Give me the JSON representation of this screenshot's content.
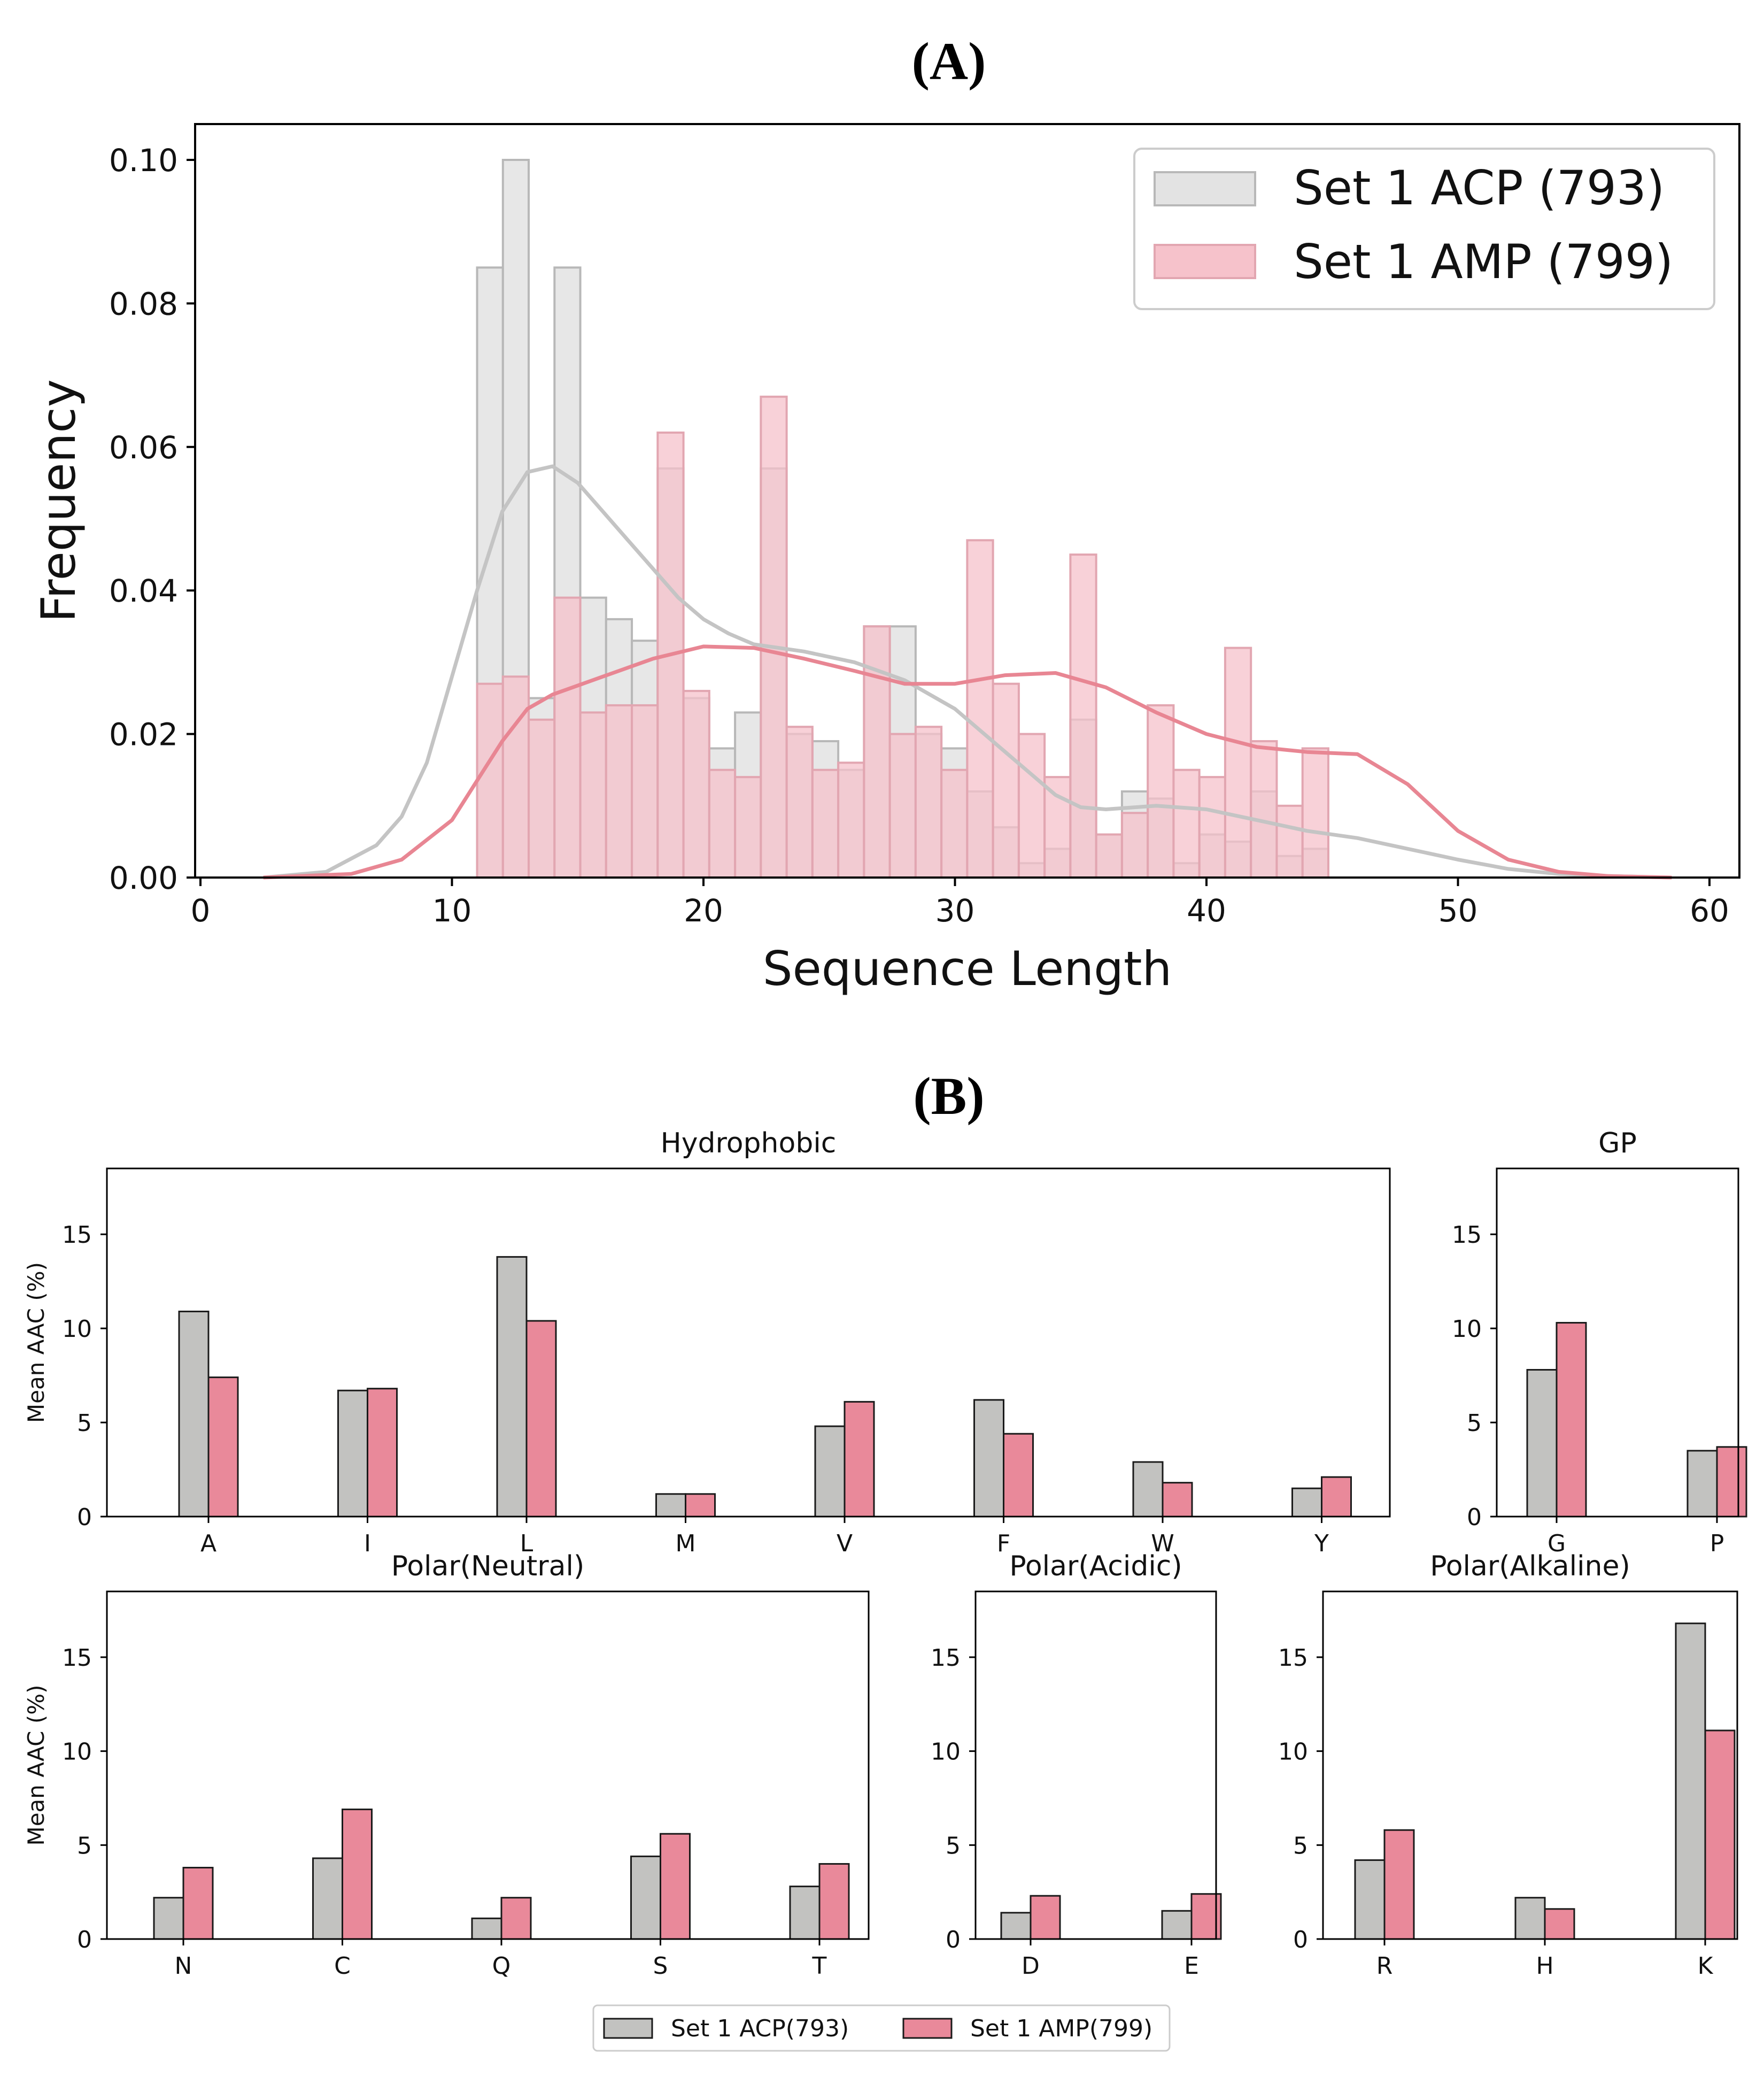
{
  "panel_a": {
    "label": "(A)"
  },
  "panel_b": {
    "label": "(B)"
  },
  "colors": {
    "acp_fill": "#e3e3e3",
    "acp_edge": "#b8b8b8",
    "acp_curve": "#c4c4c4",
    "amp_fill": "#f6c2cb",
    "amp_edge": "#e2a6b1",
    "amp_curve": "#e88693",
    "bar_acp": "#c2c2c0",
    "bar_amp": "#e9899a"
  },
  "chart_data": [
    {
      "id": "histogram",
      "type": "bar",
      "title": "",
      "xlabel": "Sequence Length",
      "ylabel": "Frequency",
      "xlim": [
        0,
        60
      ],
      "ylim": [
        0,
        0.1
      ],
      "xticks": [
        "0",
        "10",
        "20",
        "30",
        "40",
        "50",
        "60"
      ],
      "yticks": [
        "0.00",
        "0.02",
        "0.04",
        "0.06",
        "0.08",
        "0.10"
      ],
      "bin_start": 11,
      "bin_width": 1.0256,
      "legend_position": "top-right",
      "series": [
        {
          "name": "Set 1 ACP (793)",
          "values": [
            0.085,
            0.1,
            0.025,
            0.085,
            0.039,
            0.036,
            0.033,
            0.057,
            0.025,
            0.018,
            0.023,
            0.057,
            0.02,
            0.019,
            0.015,
            0.035,
            0.035,
            0.02,
            0.018,
            0.012,
            0.007,
            0.002,
            0.004,
            0.022,
            0.006,
            0.012,
            0.011,
            0.002,
            0.006,
            0.005,
            0.012,
            0.003,
            0.004
          ],
          "kde": [
            [
              2.5,
              0.0
            ],
            [
              5,
              0.0008
            ],
            [
              7,
              0.0045
            ],
            [
              8,
              0.0085
            ],
            [
              9,
              0.016
            ],
            [
              10,
              0.028
            ],
            [
              11,
              0.04
            ],
            [
              12,
              0.051
            ],
            [
              13,
              0.0565
            ],
            [
              14,
              0.0573
            ],
            [
              15,
              0.055
            ],
            [
              16,
              0.051
            ],
            [
              17,
              0.047
            ],
            [
              18,
              0.043
            ],
            [
              19,
              0.039
            ],
            [
              20,
              0.036
            ],
            [
              21,
              0.034
            ],
            [
              22,
              0.0325
            ],
            [
              24,
              0.0315
            ],
            [
              26,
              0.03
            ],
            [
              28,
              0.0275
            ],
            [
              30,
              0.0235
            ],
            [
              32,
              0.0175
            ],
            [
              34,
              0.0115
            ],
            [
              35,
              0.0098
            ],
            [
              36,
              0.0095
            ],
            [
              38,
              0.01
            ],
            [
              40,
              0.0095
            ],
            [
              42,
              0.008
            ],
            [
              44,
              0.0065
            ],
            [
              46,
              0.0055
            ],
            [
              48,
              0.004
            ],
            [
              50,
              0.0025
            ],
            [
              52,
              0.0012
            ],
            [
              54,
              0.0005
            ],
            [
              56,
              0.0002
            ],
            [
              58.5,
              0.0
            ]
          ]
        },
        {
          "name": "Set 1 AMP (799)",
          "values": [
            0.027,
            0.028,
            0.022,
            0.039,
            0.023,
            0.024,
            0.024,
            0.062,
            0.026,
            0.015,
            0.014,
            0.067,
            0.021,
            0.015,
            0.016,
            0.035,
            0.02,
            0.021,
            0.015,
            0.047,
            0.027,
            0.02,
            0.014,
            0.045,
            0.006,
            0.009,
            0.024,
            0.015,
            0.014,
            0.032,
            0.019,
            0.01,
            0.018
          ],
          "kde": [
            [
              2.5,
              0.0
            ],
            [
              6,
              0.0005
            ],
            [
              8,
              0.0025
            ],
            [
              10,
              0.008
            ],
            [
              11,
              0.0135
            ],
            [
              12,
              0.019
            ],
            [
              13,
              0.0235
            ],
            [
              14,
              0.0255
            ],
            [
              16,
              0.028
            ],
            [
              18,
              0.0305
            ],
            [
              20,
              0.0322
            ],
            [
              22,
              0.032
            ],
            [
              24,
              0.0305
            ],
            [
              26,
              0.0288
            ],
            [
              28,
              0.027
            ],
            [
              30,
              0.027
            ],
            [
              32,
              0.0282
            ],
            [
              34,
              0.0285
            ],
            [
              36,
              0.0265
            ],
            [
              38,
              0.023
            ],
            [
              40,
              0.02
            ],
            [
              42,
              0.0182
            ],
            [
              44,
              0.0175
            ],
            [
              46,
              0.0172
            ],
            [
              48,
              0.013
            ],
            [
              50,
              0.0065
            ],
            [
              52,
              0.0025
            ],
            [
              54,
              0.0008
            ],
            [
              56,
              0.0002
            ],
            [
              58.5,
              0.0
            ]
          ]
        }
      ]
    },
    {
      "id": "aac",
      "type": "bar",
      "ylabel": "Mean AAC (%)",
      "ylim": [
        0,
        18.5
      ],
      "yticks": [
        "0",
        "5",
        "10",
        "15"
      ],
      "legend_position": "bottom-center",
      "legend": [
        "Set 1 ACP(793)",
        "Set 1 AMP(799)"
      ],
      "subplots": [
        {
          "title": "Hydrophobic",
          "categories": [
            "A",
            "I",
            "L",
            "M",
            "V",
            "F",
            "W",
            "Y"
          ],
          "series": [
            {
              "name": "Set 1 ACP(793)",
              "values": [
                10.9,
                6.7,
                13.8,
                1.2,
                4.8,
                6.2,
                2.9,
                1.5
              ]
            },
            {
              "name": "Set 1 AMP(799)",
              "values": [
                7.4,
                6.8,
                10.4,
                1.2,
                6.1,
                4.4,
                1.8,
                2.1
              ]
            }
          ]
        },
        {
          "title": "GP",
          "categories": [
            "G",
            "P"
          ],
          "series": [
            {
              "name": "Set 1 ACP(793)",
              "values": [
                7.8,
                3.5
              ]
            },
            {
              "name": "Set 1 AMP(799)",
              "values": [
                10.3,
                3.7
              ]
            }
          ]
        },
        {
          "title": "Polar(Neutral)",
          "categories": [
            "N",
            "C",
            "Q",
            "S",
            "T"
          ],
          "series": [
            {
              "name": "Set 1 ACP(793)",
              "values": [
                2.2,
                4.3,
                1.1,
                4.4,
                2.8
              ]
            },
            {
              "name": "Set 1 AMP(799)",
              "values": [
                3.8,
                6.9,
                2.2,
                5.6,
                4.0
              ]
            }
          ]
        },
        {
          "title": "Polar(Acidic)",
          "categories": [
            "D",
            "E"
          ],
          "series": [
            {
              "name": "Set 1 ACP(793)",
              "values": [
                1.4,
                1.5
              ]
            },
            {
              "name": "Set 1 AMP(799)",
              "values": [
                2.3,
                2.4
              ]
            }
          ]
        },
        {
          "title": "Polar(Alkaline)",
          "categories": [
            "R",
            "H",
            "K"
          ],
          "series": [
            {
              "name": "Set 1 ACP(793)",
              "values": [
                4.2,
                2.2,
                16.8
              ]
            },
            {
              "name": "Set 1 AMP(799)",
              "values": [
                5.8,
                1.6,
                11.1
              ]
            }
          ]
        }
      ]
    }
  ]
}
